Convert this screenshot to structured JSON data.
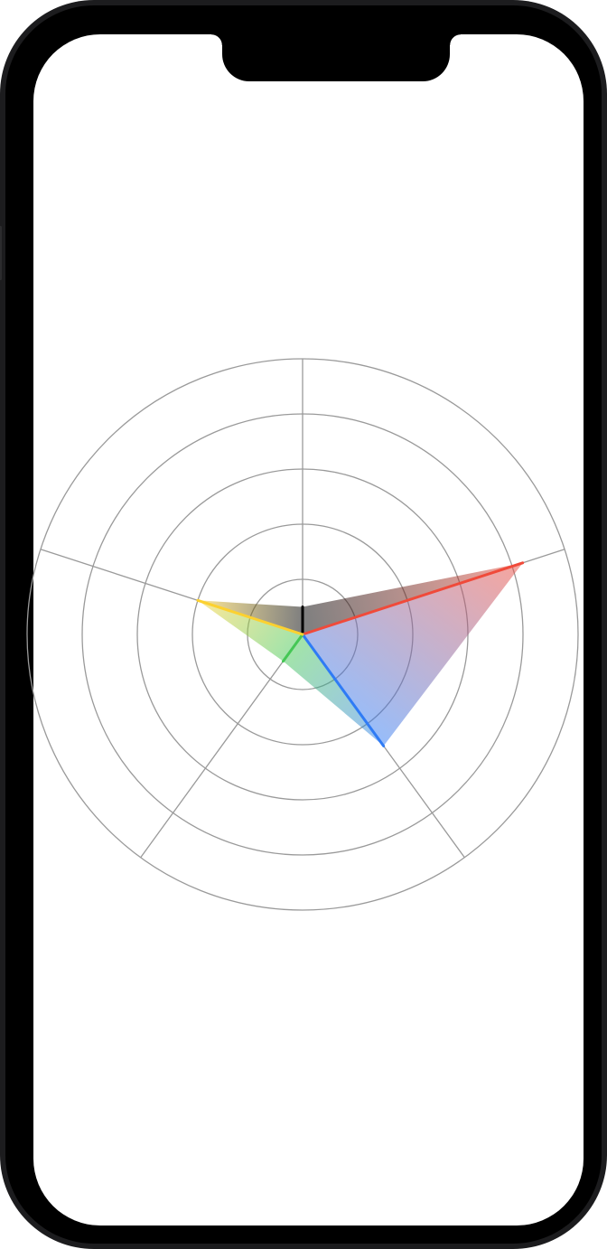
{
  "screen": {
    "name": "radar-chart-screen"
  },
  "chart_data": {
    "type": "radar",
    "title": "",
    "rings": [
      1,
      2,
      3,
      4,
      5
    ],
    "r_max": 5,
    "grid": true,
    "axes": [
      {
        "id": "axis-north",
        "angle_deg": 0
      },
      {
        "id": "axis-east-northeast",
        "angle_deg": 72
      },
      {
        "id": "axis-south-southeast",
        "angle_deg": 144
      },
      {
        "id": "axis-south-southwest",
        "angle_deg": 216
      },
      {
        "id": "axis-west-northwest",
        "angle_deg": 288
      }
    ],
    "series": [
      {
        "values": [
          0.5,
          4.2,
          2.5,
          0.6,
          2.0
        ],
        "axis_colors": [
          "#000000",
          "#f04a3a",
          "#2f7bf5",
          "#45c755",
          "#fcd12f"
        ]
      }
    ],
    "colors": {
      "grid": "#9a9a9a",
      "background": "#ffffff"
    }
  }
}
